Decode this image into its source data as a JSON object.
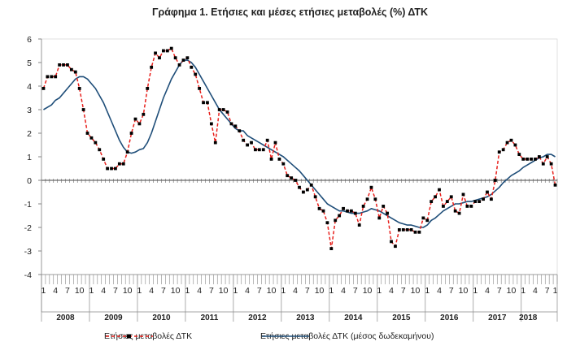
{
  "chart_data": {
    "type": "line",
    "title": "Γράφημα 1. Ετήσιες και μέσες ετήσιες μεταβολές (%) ΔΤΚ",
    "xlabel": "",
    "ylabel": "",
    "ylim": [
      -4,
      6
    ],
    "yticks": [
      6,
      5,
      4,
      3,
      2,
      1,
      0,
      -1,
      -2,
      -3,
      -4
    ],
    "month_tick_labels": [
      "1",
      "4",
      "7",
      "10"
    ],
    "final_tick_label": "1",
    "years": [
      "2008",
      "2009",
      "2010",
      "2011",
      "2012",
      "2013",
      "2014",
      "2015",
      "2016",
      "2017",
      "2018"
    ],
    "legend_position": "bottom",
    "series": [
      {
        "name": "Ετήσιες μεταβολές ΔΤΚ",
        "color": "#e8201c",
        "style": "dashed-with-markers",
        "values": [
          3.9,
          4.4,
          4.4,
          4.4,
          4.9,
          4.9,
          4.9,
          4.7,
          4.6,
          3.9,
          3.0,
          2.0,
          1.8,
          1.6,
          1.3,
          0.9,
          0.5,
          0.5,
          0.5,
          0.7,
          0.7,
          1.2,
          2.0,
          2.6,
          2.4,
          2.8,
          3.9,
          4.8,
          5.4,
          5.2,
          5.5,
          5.5,
          5.6,
          5.2,
          4.9,
          5.1,
          5.2,
          4.8,
          4.5,
          3.9,
          3.3,
          3.3,
          2.4,
          1.6,
          3.0,
          3.0,
          2.9,
          2.4,
          2.3,
          2.1,
          1.7,
          1.5,
          1.6,
          1.3,
          1.3,
          1.3,
          1.7,
          0.9,
          1.6,
          0.9,
          0.7,
          0.2,
          0.1,
          0.0,
          -0.3,
          -0.5,
          -0.4,
          -0.2,
          -0.7,
          -1.2,
          -1.3,
          -1.8,
          -2.9,
          -1.7,
          -1.5,
          -1.2,
          -1.3,
          -1.3,
          -1.4,
          -1.9,
          -1.1,
          -0.8,
          -0.3,
          -0.8,
          -1.6,
          -1.1,
          -1.4,
          -2.6,
          -2.8,
          -2.1,
          -2.1,
          -2.1,
          -2.1,
          -2.2,
          -2.2,
          -1.6,
          -1.7,
          -0.9,
          -0.7,
          -0.4,
          -1.1,
          -0.9,
          -0.7,
          -1.3,
          -1.4,
          -0.6,
          -1.1,
          -1.1,
          -0.9,
          -0.9,
          -0.8,
          -0.5,
          -0.8,
          0.0,
          1.2,
          1.3,
          1.6,
          1.7,
          1.5,
          1.1,
          0.9,
          0.9,
          0.9,
          0.9,
          1.0,
          0.7,
          1.0,
          0.7,
          -0.2
        ]
      },
      {
        "name": "Ετήσιες μεταβολές ΔΤΚ (μέσος δωδεκαμήνου)",
        "color": "#1f4e79",
        "style": "solid",
        "values": [
          3.0,
          3.1,
          3.2,
          3.4,
          3.5,
          3.7,
          3.9,
          4.1,
          4.3,
          4.4,
          4.4,
          4.3,
          4.1,
          3.9,
          3.6,
          3.3,
          2.9,
          2.5,
          2.1,
          1.7,
          1.4,
          1.2,
          1.15,
          1.2,
          1.3,
          1.35,
          1.6,
          2.0,
          2.5,
          3.0,
          3.5,
          3.9,
          4.3,
          4.6,
          4.9,
          5.1,
          5.1,
          5.0,
          4.8,
          4.5,
          4.2,
          3.9,
          3.6,
          3.3,
          3.0,
          2.8,
          2.6,
          2.4,
          2.2,
          2.1,
          2.1,
          1.9,
          1.8,
          1.7,
          1.6,
          1.5,
          1.4,
          1.3,
          1.2,
          1.1,
          1.0,
          0.85,
          0.7,
          0.55,
          0.4,
          0.2,
          0.0,
          -0.2,
          -0.4,
          -0.6,
          -0.8,
          -1.0,
          -1.1,
          -1.2,
          -1.3,
          -1.3,
          -1.35,
          -1.4,
          -1.4,
          -1.4,
          -1.35,
          -1.3,
          -1.2,
          -1.25,
          -1.3,
          -1.4,
          -1.5,
          -1.6,
          -1.7,
          -1.8,
          -1.85,
          -1.9,
          -1.9,
          -1.95,
          -2.0,
          -2.0,
          -1.9,
          -1.7,
          -1.6,
          -1.45,
          -1.3,
          -1.2,
          -1.1,
          -1.0,
          -1.0,
          -0.95,
          -0.9,
          -0.9,
          -0.85,
          -0.8,
          -0.75,
          -0.7,
          -0.6,
          -0.45,
          -0.3,
          -0.1,
          0.05,
          0.2,
          0.3,
          0.4,
          0.55,
          0.65,
          0.75,
          0.85,
          0.95,
          1.0,
          1.1,
          1.1,
          1.0
        ]
      }
    ]
  }
}
